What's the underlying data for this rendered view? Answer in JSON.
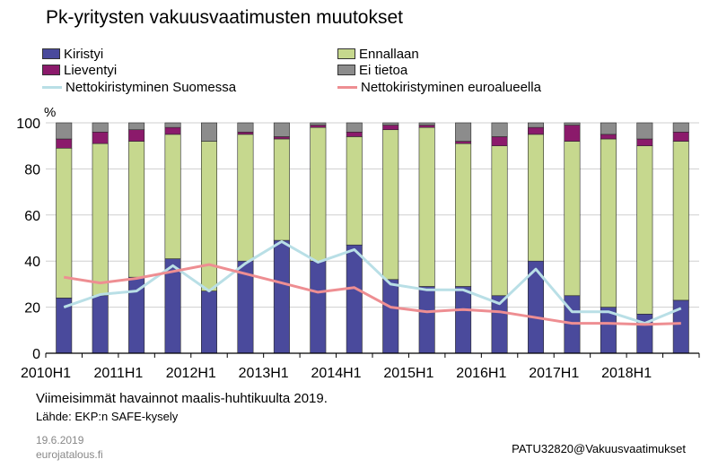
{
  "title": "Pk-yritysten vakuusvaatimusten muutokset",
  "footnote": "Viimeisimmät havainnot maalis-huhtikuulta 2019.",
  "source": "Lähde: EKP:n SAFE-kysely",
  "date": "19.6.2019",
  "site": "eurojatalous.fi",
  "code": "PATU32820@Vakuusvaatimukset",
  "legend": {
    "kiristyi": "Kiristyi",
    "lieventyi": "Lieventyi",
    "suomi": "Nettokiristyminen Suomessa",
    "ennallaan": "Ennallaan",
    "ei_tietoa": "Ei tietoa",
    "euro": "Nettokiristyminen euroalueella"
  },
  "colors": {
    "kiristyi": "#4a4a9c",
    "ennallaan": "#c6d88e",
    "lieventyi": "#8b1a6b",
    "ei_tietoa": "#8c8c8c",
    "suomi": "#b9dfe6",
    "euro": "#ee8e92"
  },
  "chart_data": {
    "type": "bar",
    "stacked": true,
    "ylabel": "%",
    "ylim": [
      0,
      100
    ],
    "yticks": [
      0,
      20,
      40,
      60,
      80,
      100
    ],
    "xtick_labels": [
      "2010H1",
      "2011H1",
      "2012H1",
      "2013H1",
      "2014H1",
      "2015H1",
      "2016H1",
      "2017H1",
      "2018H1"
    ],
    "periods": 18,
    "series": [
      {
        "name": "Kiristyi",
        "kind": "bar",
        "values": [
          24,
          25,
          33,
          41,
          27,
          40,
          49,
          40,
          47,
          32,
          29,
          29,
          25,
          40,
          25,
          20,
          17,
          23
        ]
      },
      {
        "name": "Ennallaan",
        "kind": "bar",
        "values": [
          65,
          66,
          59,
          54,
          65,
          55,
          44,
          58,
          47,
          65,
          69,
          62,
          65,
          55,
          67,
          73,
          73,
          69
        ]
      },
      {
        "name": "Lieventyi",
        "kind": "bar",
        "values": [
          4,
          5,
          5,
          3,
          0,
          1,
          1,
          1,
          2,
          2,
          1,
          1,
          4,
          3,
          7,
          2,
          3,
          4
        ]
      },
      {
        "name": "Ei tietoa",
        "kind": "bar",
        "values": [
          7,
          4,
          3,
          2,
          8,
          4,
          6,
          1,
          4,
          1,
          1,
          8,
          6,
          2,
          1,
          5,
          7,
          4
        ]
      },
      {
        "name": "Nettokiristyminen Suomessa",
        "kind": "line",
        "values": [
          20,
          25.5,
          27,
          38,
          27,
          39,
          48.5,
          39.5,
          45,
          30,
          27.5,
          27.5,
          21.5,
          36.5,
          18,
          18,
          13,
          19.5
        ]
      },
      {
        "name": "Nettokiristyminen euroalueella",
        "kind": "line",
        "values": [
          33,
          30.5,
          32.5,
          35.5,
          38.5,
          34.5,
          30.5,
          26.5,
          28.5,
          20,
          18,
          19,
          18,
          15.5,
          13,
          13,
          12.5,
          13
        ]
      }
    ]
  }
}
